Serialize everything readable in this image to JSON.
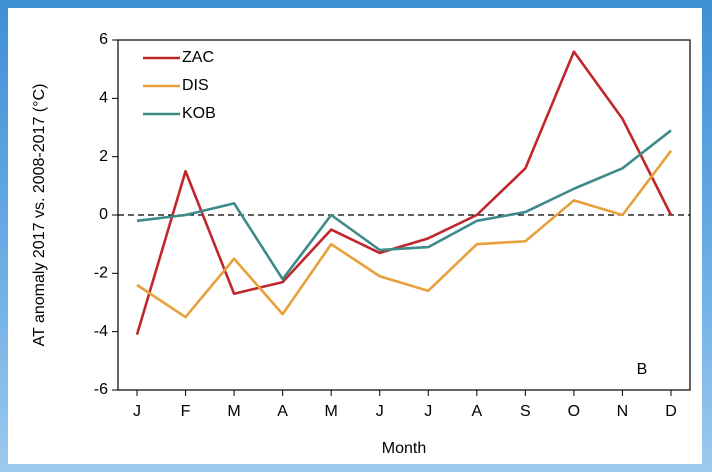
{
  "chart_data": {
    "type": "line",
    "y_label": "AT anomaly 2017 vs. 2008-2017 (°C)",
    "x_label": "Month",
    "annotation": "B",
    "categories": [
      "J",
      "F",
      "M",
      "A",
      "M",
      "J",
      "J",
      "A",
      "S",
      "O",
      "N",
      "D"
    ],
    "series": [
      {
        "name": "ZAC",
        "color": "#c0272d",
        "values": [
          -4.1,
          1.5,
          -2.7,
          -2.3,
          -0.5,
          -1.3,
          -0.8,
          0.0,
          1.6,
          5.6,
          3.3,
          0.0
        ]
      },
      {
        "name": "DIS",
        "color": "#e8a03c",
        "values": [
          -2.4,
          -3.5,
          -1.5,
          -3.4,
          -1.0,
          -2.1,
          -2.6,
          -1.0,
          -0.9,
          0.5,
          0.0,
          2.2
        ]
      },
      {
        "name": "KOB",
        "color": "#3d8a88",
        "values": [
          -0.2,
          0.0,
          0.4,
          -2.2,
          0.0,
          -1.2,
          -1.1,
          -0.2,
          0.1,
          0.9,
          1.6,
          2.9
        ]
      }
    ],
    "ylim": [
      -6,
      6
    ],
    "yticks": [
      -6,
      -4,
      -2,
      0,
      2,
      4,
      6
    ],
    "reference_line": 0,
    "legend": "top-left"
  }
}
